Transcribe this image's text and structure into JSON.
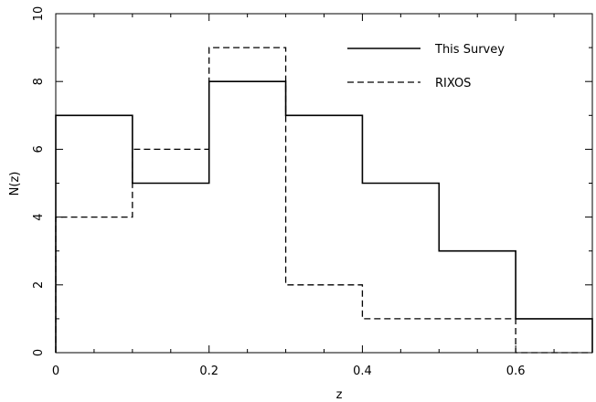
{
  "chart_data": {
    "type": "histogram-step",
    "xlabel": "z",
    "ylabel": "N(z)",
    "xlim": [
      0,
      0.7
    ],
    "ylim": [
      0,
      10
    ],
    "xticks": [
      0,
      0.2,
      0.4,
      0.6
    ],
    "xtick_labels": [
      "0",
      "0.2",
      "0.4",
      "0.6"
    ],
    "yticks": [
      0,
      2,
      4,
      6,
      8,
      10
    ],
    "ytick_labels": [
      "0",
      "2",
      "4",
      "6",
      "8",
      "10"
    ],
    "bin_edges": [
      0,
      0.1,
      0.2,
      0.3,
      0.4,
      0.5,
      0.6,
      0.7
    ],
    "grid": false,
    "legend_position": "top-right",
    "series": [
      {
        "name": "This Survey",
        "style": "solid",
        "values": [
          7,
          5,
          8,
          7,
          5,
          3,
          1
        ]
      },
      {
        "name": "RIXOS",
        "style": "dashed",
        "values": [
          4,
          6,
          9,
          2,
          1,
          1,
          0
        ]
      }
    ]
  }
}
